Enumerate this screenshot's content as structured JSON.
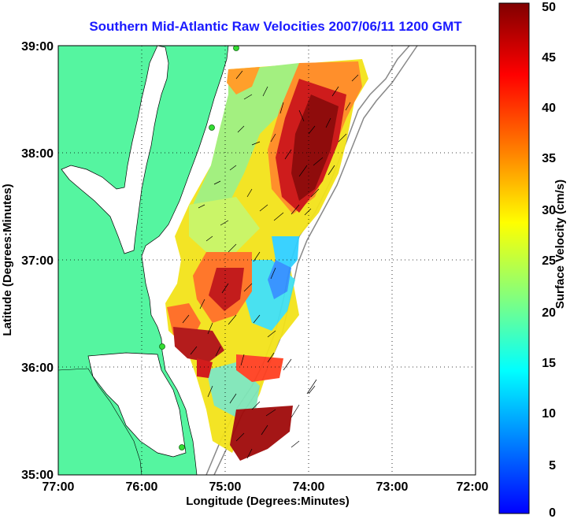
{
  "title": "Southern Mid-Atlantic Raw Velocities 2007/06/11 1200 GMT",
  "x_axis": {
    "label": "Longitude (Degrees:Minutes)",
    "ticks": [
      "77:00",
      "76:00",
      "75:00",
      "74:00",
      "73:00",
      "72:00"
    ]
  },
  "y_axis": {
    "label": "Latitude (Degrees:Minutes)",
    "ticks": [
      "39:00",
      "38:00",
      "37:00",
      "36:00",
      "35:00"
    ]
  },
  "colorbar": {
    "label": "Surface Velocity (cm/s)",
    "ticks": [
      "0",
      "5",
      "10",
      "15",
      "20",
      "25",
      "30",
      "35",
      "40",
      "45",
      "50"
    ],
    "min": 0,
    "max": 50,
    "colormap": [
      "#0000ff",
      "#0080ff",
      "#00ffff",
      "#80ff80",
      "#ffff00",
      "#ff8000",
      "#ff0000",
      "#800000"
    ]
  },
  "map": {
    "lon_range": [
      -77,
      -72
    ],
    "lat_range": [
      35,
      39
    ],
    "land_color": "#55f5a0",
    "grid": "dotted",
    "hf_radar_site_color": "#33dd33"
  }
}
